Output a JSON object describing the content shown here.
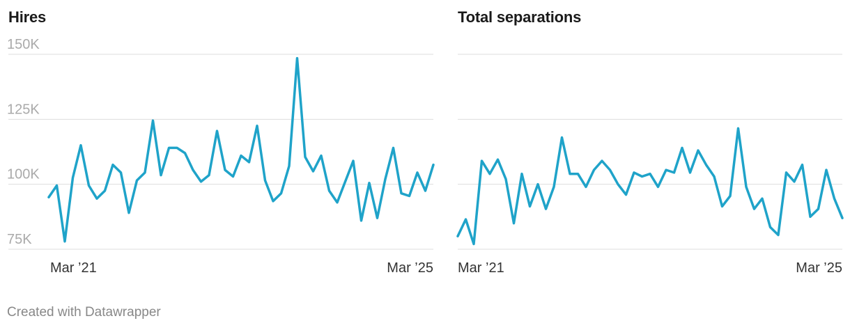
{
  "footer": "Created with Datawrapper",
  "colors": {
    "line": "#1fa3c9",
    "grid": "#dddddd",
    "ytick": "#aaaaaa",
    "xtick": "#333333"
  },
  "chart_data": [
    {
      "type": "line",
      "title": "Hires",
      "ylim": [
        75000,
        150000
      ],
      "yticks": [
        75000,
        100000,
        125000,
        150000
      ],
      "ytick_labels": [
        "75K",
        "100K",
        "125K",
        "150K"
      ],
      "xtick_labels": [
        "Mar ’21",
        "Mar ’25"
      ],
      "x_range": [
        "Mar 2021",
        "Mar 2025"
      ],
      "series": [
        {
          "values": [
            95000,
            99500,
            78000,
            102500,
            115000,
            99500,
            94500,
            97500,
            107500,
            104500,
            89000,
            101500,
            104500,
            124500,
            103500,
            114000,
            114000,
            112000,
            105500,
            101000,
            103500,
            120500,
            105500,
            103000,
            111000,
            108500,
            122500,
            101500,
            93500,
            96500,
            107000,
            148500,
            110500,
            105000,
            111000,
            97500,
            93000,
            101000,
            109000,
            86000,
            100500,
            87000,
            102000,
            114000,
            96500,
            95500,
            104500,
            97500,
            107500
          ]
        }
      ]
    },
    {
      "type": "line",
      "title": "Total separations",
      "ylim": [
        75000,
        150000
      ],
      "yticks": [
        75000,
        100000,
        125000,
        150000
      ],
      "xtick_labels": [
        "Mar ’21",
        "Mar ’25"
      ],
      "x_range": [
        "Mar 2021",
        "Mar 2025"
      ],
      "series": [
        {
          "values": [
            80000,
            86500,
            77000,
            109000,
            104000,
            109500,
            102000,
            85000,
            104000,
            91500,
            100000,
            90500,
            99000,
            118000,
            104000,
            104000,
            99000,
            105500,
            109000,
            105500,
            100000,
            96000,
            104500,
            103000,
            104000,
            99000,
            105500,
            104500,
            114000,
            104500,
            113000,
            107500,
            103000,
            91500,
            95500,
            121500,
            99000,
            90500,
            94500,
            83500,
            80500,
            104500,
            101000,
            107500,
            87500,
            90500,
            105500,
            94500,
            87000
          ]
        }
      ]
    }
  ]
}
